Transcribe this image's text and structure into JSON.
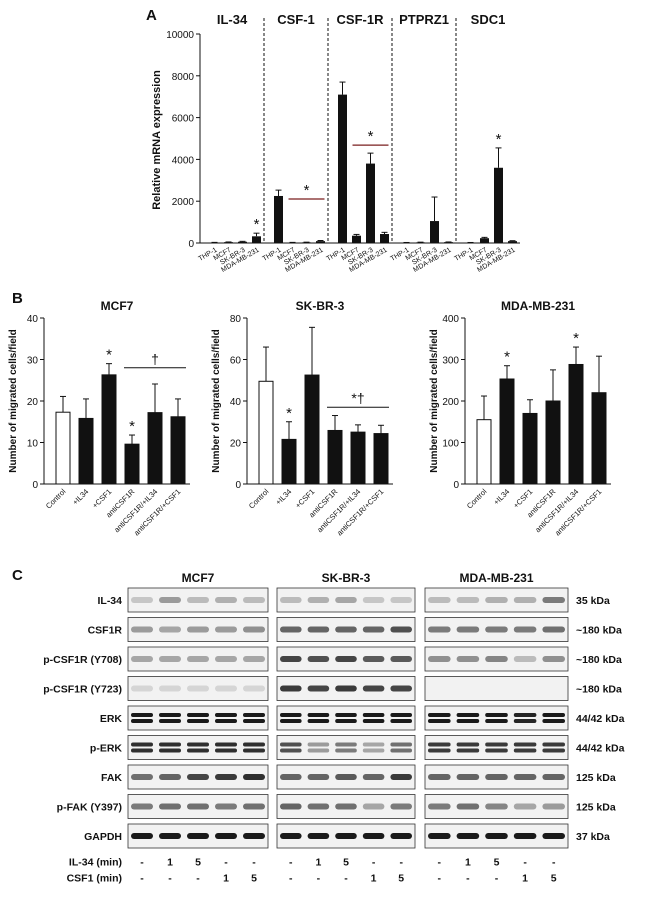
{
  "panels": {
    "a": "A",
    "b": "B",
    "c": "C"
  },
  "panelA": {
    "ylabel": "Relative mRNA expression",
    "yticks": [
      "0",
      "2000",
      "4000",
      "6000",
      "8000",
      "10000"
    ],
    "ylim": [
      0,
      10000
    ],
    "genes": [
      "IL-34",
      "CSF-1",
      "CSF-1R",
      "PTPRZ1",
      "SDC1"
    ],
    "cell_lines": [
      "THP-1",
      "MCF7",
      "SK-BR-3",
      "MDA-MB-231"
    ]
  },
  "panelB": {
    "ylabel": "Number of migrated cells/field",
    "categories": [
      "Control",
      "+IL34",
      "+CSF1",
      "antiCSF1R",
      "antiCSF1R/+IL34",
      "antiCSF1R/+CSF1"
    ],
    "dagger": "†",
    "star_dagger": "*†",
    "star": "*"
  },
  "panelC": {
    "cell_lines": [
      "MCF7",
      "SK-BR-3",
      "MDA-MB-231"
    ],
    "rows": [
      {
        "label": "IL-34",
        "kda": "35 kDa"
      },
      {
        "label": "CSF1R",
        "kda": "~180 kDa"
      },
      {
        "label": "p-CSF1R (Y708)",
        "kda": "~180 kDa"
      },
      {
        "label": "p-CSF1R (Y723)",
        "kda": "~180 kDa"
      },
      {
        "label": "ERK",
        "kda": "44/42 kDa"
      },
      {
        "label": "p-ERK",
        "kda": "44/42 kDa"
      },
      {
        "label": "FAK",
        "kda": "125 kDa"
      },
      {
        "label": "p-FAK (Y397)",
        "kda": "125 kDa"
      },
      {
        "label": "GAPDH",
        "kda": "37 kDa"
      }
    ],
    "treatments": [
      {
        "label": "IL-34 (min)",
        "values": [
          "-",
          "1",
          "5",
          "-",
          "-"
        ]
      },
      {
        "label": "CSF1 (min)",
        "values": [
          "-",
          "-",
          "-",
          "1",
          "5"
        ]
      }
    ]
  },
  "chart_data": [
    {
      "type": "bar",
      "title": "",
      "ylabel": "Relative mRNA expression",
      "ylim": [
        0,
        10000
      ],
      "groups": [
        {
          "name": "IL-34",
          "categories": [
            "THP-1",
            "MCF7",
            "SK-BR-3",
            "MDA-MB-231"
          ],
          "values": [
            20,
            40,
            60,
            320
          ],
          "errors": [
            10,
            10,
            20,
            150
          ],
          "annotations": [
            {
              "text": "*",
              "over": "MDA-MB-231"
            }
          ]
        },
        {
          "name": "CSF-1",
          "categories": [
            "THP-1",
            "MCF7",
            "SK-BR-3",
            "MDA-MB-231"
          ],
          "values": [
            2250,
            20,
            30,
            90
          ],
          "errors": [
            280,
            10,
            10,
            30
          ],
          "annotations": [
            {
              "text": "*",
              "over": [
                "MCF7",
                "SK-BR-3",
                "MDA-MB-231"
              ]
            }
          ]
        },
        {
          "name": "CSF-1R",
          "categories": [
            "THP-1",
            "MCF7",
            "SK-BR-3",
            "MDA-MB-231"
          ],
          "values": [
            7100,
            350,
            3800,
            430
          ],
          "errors": [
            600,
            60,
            500,
            80
          ],
          "annotations": [
            {
              "text": "*",
              "over": [
                "MCF7",
                "SK-BR-3",
                "MDA-MB-231"
              ]
            }
          ]
        },
        {
          "name": "PTPRZ1",
          "categories": [
            "THP-1",
            "MCF7",
            "SK-BR-3",
            "MDA-MB-231"
          ],
          "values": [
            20,
            30,
            1050,
            40
          ],
          "errors": [
            5,
            10,
            1150,
            10
          ],
          "annotations": []
        },
        {
          "name": "SDC1",
          "categories": [
            "THP-1",
            "MCF7",
            "SK-BR-3",
            "MDA-MB-231"
          ],
          "values": [
            20,
            230,
            3600,
            90
          ],
          "errors": [
            5,
            40,
            950,
            20
          ],
          "annotations": [
            {
              "text": "*",
              "over": "SK-BR-3"
            }
          ]
        }
      ]
    },
    {
      "type": "bar",
      "title": "MCF7",
      "ylabel": "Number of migrated cells/field",
      "ylim": [
        0,
        40
      ],
      "yticks": [
        0,
        10,
        20,
        30,
        40
      ],
      "categories": [
        "Control",
        "+IL34",
        "+CSF1",
        "antiCSF1R",
        "antiCSF1R/+IL34",
        "antiCSF1R/+CSF1"
      ],
      "values": [
        17.3,
        15.8,
        26.3,
        9.6,
        17.2,
        16.2
      ],
      "errors": [
        3.8,
        4.7,
        2.7,
        2.2,
        6.9,
        4.3
      ],
      "annotations": [
        {
          "text": "*",
          "over": "+CSF1"
        },
        {
          "text": "*",
          "over": "antiCSF1R"
        },
        {
          "text": "†",
          "over": [
            "antiCSF1R",
            "antiCSF1R/+IL34",
            "antiCSF1R/+CSF1"
          ]
        }
      ]
    },
    {
      "type": "bar",
      "title": "SK-BR-3",
      "ylabel": "Number of migrated cells/field",
      "ylim": [
        0,
        80
      ],
      "yticks": [
        0,
        20,
        40,
        60,
        80
      ],
      "categories": [
        "Control",
        "+IL34",
        "+CSF1",
        "antiCSF1R",
        "antiCSF1R/+IL34",
        "antiCSF1R/+CSF1"
      ],
      "values": [
        49.5,
        21.5,
        52.5,
        25.8,
        25,
        24.3
      ],
      "errors": [
        16.5,
        8.5,
        23,
        7.2,
        3.5,
        4
      ],
      "annotations": [
        {
          "text": "*",
          "over": "+IL34"
        },
        {
          "text": "*†",
          "over": [
            "antiCSF1R",
            "antiCSF1R/+IL34",
            "antiCSF1R/+CSF1"
          ]
        }
      ]
    },
    {
      "type": "bar",
      "title": "MDA-MB-231",
      "ylabel": "Number of migrated cells/field",
      "ylim": [
        0,
        400
      ],
      "yticks": [
        0,
        100,
        200,
        300,
        400
      ],
      "categories": [
        "Control",
        "+IL34",
        "+CSF1",
        "antiCSF1R",
        "antiCSF1R/+IL34",
        "antiCSF1R/+CSF1"
      ],
      "values": [
        155,
        253,
        170,
        200,
        288,
        220
      ],
      "errors": [
        57,
        32,
        33,
        75,
        42,
        88
      ],
      "annotations": [
        {
          "text": "*",
          "over": "+IL34"
        },
        {
          "text": "*",
          "over": "antiCSF1R/+IL34"
        }
      ]
    }
  ]
}
